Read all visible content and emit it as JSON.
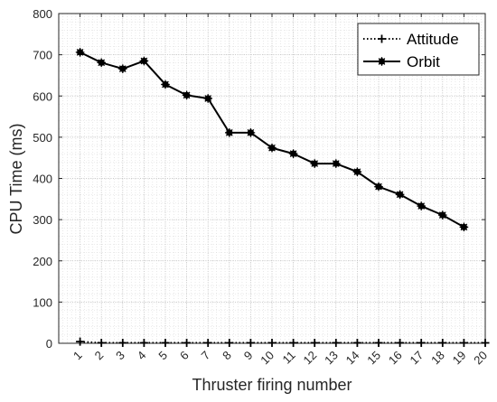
{
  "chart_data": {
    "type": "line",
    "title": "",
    "xlabel": "Thruster firing number",
    "ylabel": "CPU Time (ms)",
    "x": [
      1,
      2,
      3,
      4,
      5,
      6,
      7,
      8,
      9,
      10,
      11,
      12,
      13,
      14,
      15,
      16,
      17,
      18,
      19,
      20
    ],
    "x_tick_labels": [
      "1",
      "2",
      "3",
      "4",
      "5",
      "6",
      "7",
      "8",
      "9",
      "10",
      "11",
      "12",
      "13",
      "14",
      "15",
      "16",
      "17",
      "18",
      "19",
      "20"
    ],
    "xlim": [
      0,
      20
    ],
    "ylim": [
      0,
      800
    ],
    "y_ticks": [
      0,
      100,
      200,
      300,
      400,
      500,
      600,
      700,
      800
    ],
    "grid": "on (major and minor, dotted)",
    "legend_position": "top-right",
    "series": [
      {
        "name": "Attitude",
        "marker": "plus",
        "line_style": "dotted",
        "color": "#000000",
        "x": [
          1,
          2,
          3,
          4,
          5,
          6,
          7,
          8,
          9,
          10,
          11,
          12,
          13,
          14,
          15,
          16,
          17,
          18,
          19,
          20
        ],
        "values": [
          4,
          1,
          1,
          1,
          1,
          1,
          1,
          1,
          1,
          1,
          1,
          1,
          1,
          1,
          1,
          1,
          1,
          1,
          1,
          1
        ]
      },
      {
        "name": "Orbit",
        "marker": "circle-star",
        "line_style": "solid",
        "color": "#000000",
        "x": [
          1,
          2,
          3,
          4,
          5,
          6,
          7,
          8,
          9,
          10,
          11,
          12,
          13,
          14,
          15,
          16,
          17,
          18,
          19
        ],
        "values": [
          706,
          681,
          666,
          685,
          628,
          602,
          594,
          511,
          511,
          474,
          460,
          436,
          436,
          416,
          380,
          361,
          333,
          311,
          282
        ]
      }
    ]
  }
}
